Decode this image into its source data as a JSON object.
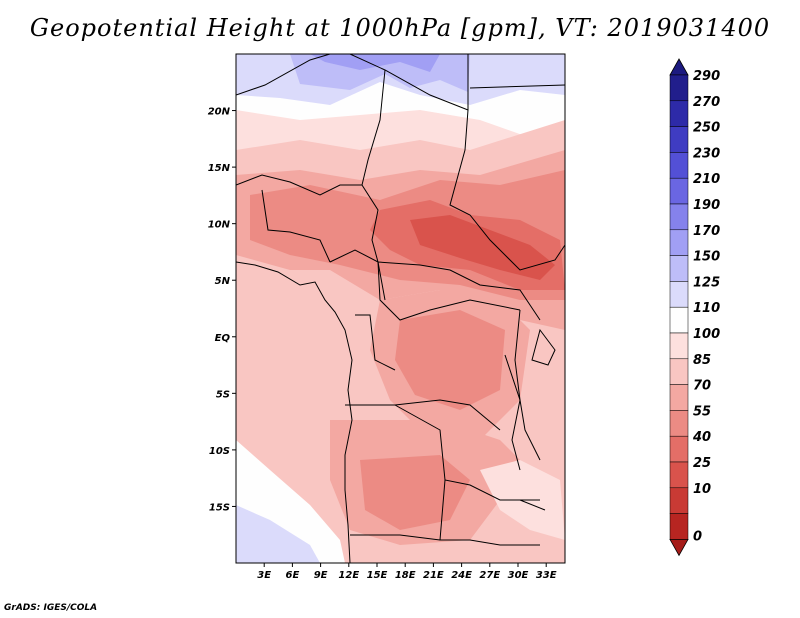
{
  "title": "Geopotential Height at 1000hPa [gpm], VT: 2019031400",
  "credit": "GrADS: IGES/COLA",
  "map": {
    "lon_range": [
      0,
      35
    ],
    "lat_range": [
      -20,
      25
    ],
    "lat_ticks": [
      {
        "value": 20,
        "label": "20N"
      },
      {
        "value": 15,
        "label": "15N"
      },
      {
        "value": 10,
        "label": "10N"
      },
      {
        "value": 5,
        "label": "5N"
      },
      {
        "value": 0,
        "label": "EQ"
      },
      {
        "value": -5,
        "label": "5S"
      },
      {
        "value": -10,
        "label": "10S"
      },
      {
        "value": -15,
        "label": "15S"
      }
    ],
    "lon_ticks": [
      {
        "value": 3,
        "label": "3E"
      },
      {
        "value": 6,
        "label": "6E"
      },
      {
        "value": 9,
        "label": "9E"
      },
      {
        "value": 12,
        "label": "12E"
      },
      {
        "value": 15,
        "label": "15E"
      },
      {
        "value": 18,
        "label": "18E"
      },
      {
        "value": 21,
        "label": "21E"
      },
      {
        "value": 24,
        "label": "24E"
      },
      {
        "value": 27,
        "label": "27E"
      },
      {
        "value": 30,
        "label": "30E"
      },
      {
        "value": 33,
        "label": "33E"
      }
    ]
  },
  "colorbar": {
    "levels": [
      {
        "label": "290",
        "color": "#211e8c"
      },
      {
        "label": "270",
        "color": "#2d2aa8"
      },
      {
        "label": "250",
        "color": "#3f3cc2"
      },
      {
        "label": "230",
        "color": "#5350d6"
      },
      {
        "label": "210",
        "color": "#6a66e2"
      },
      {
        "label": "190",
        "color": "#8582ec"
      },
      {
        "label": "170",
        "color": "#a19ff4"
      },
      {
        "label": "150",
        "color": "#bebdf8"
      },
      {
        "label": "125",
        "color": "#dbdbfb"
      },
      {
        "label": "110",
        "color": "#fefefe"
      },
      {
        "label": "100",
        "color": "#fde0de"
      },
      {
        "label": "85",
        "color": "#f9c6c2"
      },
      {
        "label": "70",
        "color": "#f3a8a2"
      },
      {
        "label": "55",
        "color": "#ec8b84"
      },
      {
        "label": "40",
        "color": "#e46e67"
      },
      {
        "label": "25",
        "color": "#d9534c"
      },
      {
        "label": "10",
        "color": "#c93a34"
      },
      {
        "label": "0",
        "color": "#b72521"
      }
    ],
    "top_color": "#1c1a80",
    "bottom_color": "#a51c19"
  }
}
